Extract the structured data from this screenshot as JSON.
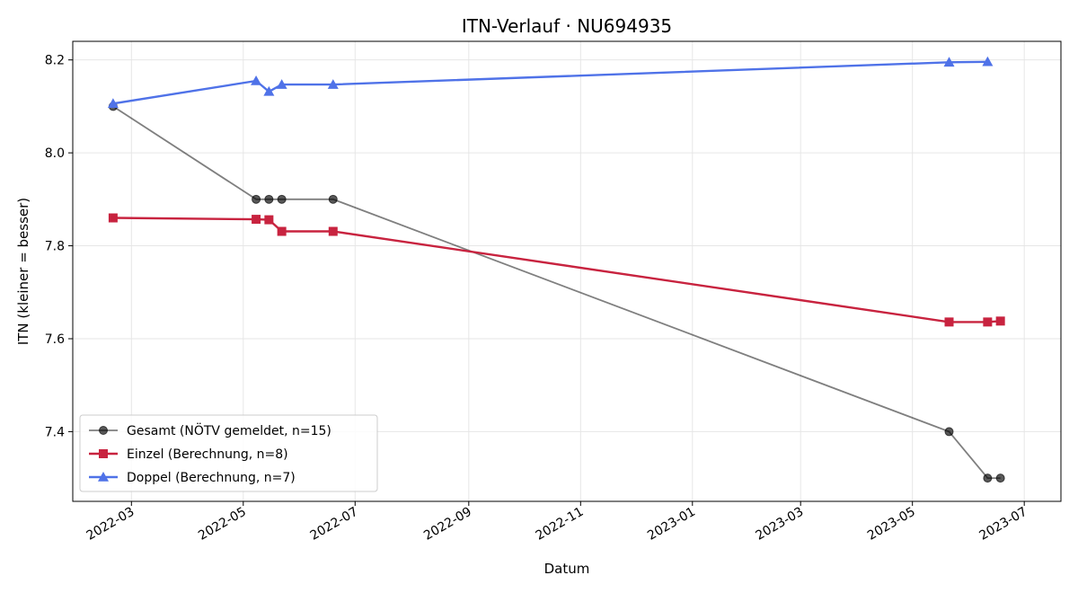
{
  "chart_data": {
    "type": "line",
    "title": "ITN-Verlauf · NU694935",
    "xlabel": "Datum",
    "ylabel": "ITN  (kleiner = besser)",
    "x_ticks": [
      "2022-03",
      "2022-05",
      "2022-07",
      "2022-09",
      "2022-11",
      "2023-01",
      "2023-03",
      "2023-05",
      "2023-07"
    ],
    "y_ticks": [
      "7.4",
      "7.6",
      "7.8",
      "8.0",
      "8.2"
    ],
    "xlim": [
      "2022-01-28",
      "2023-07-21"
    ],
    "ylim": [
      7.25,
      8.24
    ],
    "grid": true,
    "legend_position": "lower-left",
    "series": [
      {
        "name": "Gesamt (NÖTV gemeldet, n=15)",
        "color": "#000000",
        "marker": "circle",
        "points": [
          {
            "x": "2022-02-19",
            "y": 8.1
          },
          {
            "x": "2022-05-08",
            "y": 7.9
          },
          {
            "x": "2022-05-15",
            "y": 7.9
          },
          {
            "x": "2022-05-22",
            "y": 7.9
          },
          {
            "x": "2022-06-19",
            "y": 7.9
          },
          {
            "x": "2023-05-21",
            "y": 7.4
          },
          {
            "x": "2023-06-11",
            "y": 7.3
          },
          {
            "x": "2023-06-18",
            "y": 7.3
          }
        ]
      },
      {
        "name": "Einzel (Berechnung, n=8)",
        "color": "#c8233f",
        "marker": "square",
        "points": [
          {
            "x": "2022-02-19",
            "y": 7.86
          },
          {
            "x": "2022-05-08",
            "y": 7.857
          },
          {
            "x": "2022-05-15",
            "y": 7.856
          },
          {
            "x": "2022-05-22",
            "y": 7.831
          },
          {
            "x": "2022-06-19",
            "y": 7.831
          },
          {
            "x": "2023-05-21",
            "y": 7.636
          },
          {
            "x": "2023-06-11",
            "y": 7.636
          },
          {
            "x": "2023-06-18",
            "y": 7.638
          }
        ]
      },
      {
        "name": "Doppel (Berechnung, n=7)",
        "color": "#4f72e8",
        "marker": "triangle",
        "points": [
          {
            "x": "2022-02-19",
            "y": 8.106
          },
          {
            "x": "2022-05-08",
            "y": 8.155
          },
          {
            "x": "2022-05-15",
            "y": 8.132
          },
          {
            "x": "2022-05-22",
            "y": 8.147
          },
          {
            "x": "2022-06-19",
            "y": 8.147
          },
          {
            "x": "2023-05-21",
            "y": 8.195
          },
          {
            "x": "2023-06-11",
            "y": 8.196
          }
        ]
      }
    ]
  }
}
